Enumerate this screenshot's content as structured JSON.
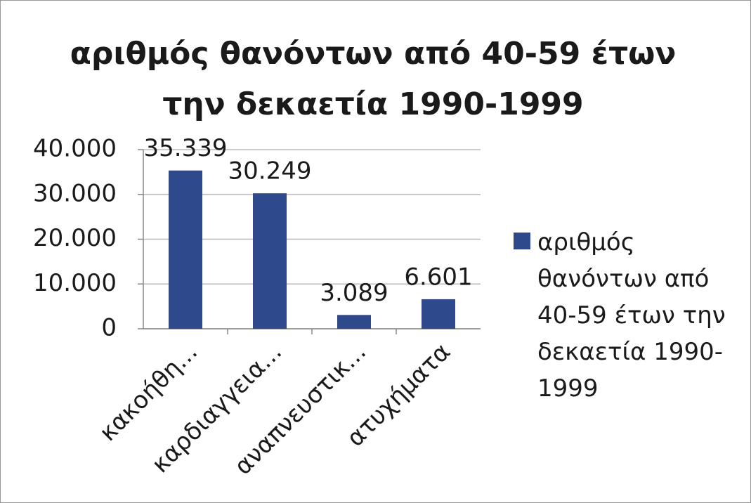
{
  "chart_data": {
    "type": "bar",
    "title": "αριθμός θανόντων από 40-59 έτων την δεκαετία 1990-1999",
    "categories": [
      "κακοήθη...",
      "καρδιαγγεια...",
      "αναπνευστικ...",
      "ατυχήματα"
    ],
    "series": [
      {
        "name": "αριθμός θανόντων από 40-59 έτων την δεκαετία 1990-1999",
        "color": "#2e4a8c",
        "values": [
          35339,
          30249,
          3089,
          6601
        ],
        "value_labels": [
          "35.339",
          "30.249",
          "3.089",
          "6.601"
        ]
      }
    ],
    "ylim": [
      0,
      40000
    ],
    "yticks": [
      {
        "value": 0,
        "label": "0"
      },
      {
        "value": 10000,
        "label": "10.000"
      },
      {
        "value": 20000,
        "label": "20.000"
      },
      {
        "value": 30000,
        "label": "30.000"
      },
      {
        "value": 40000,
        "label": "40.000"
      }
    ],
    "grid": true,
    "legend": "right"
  }
}
